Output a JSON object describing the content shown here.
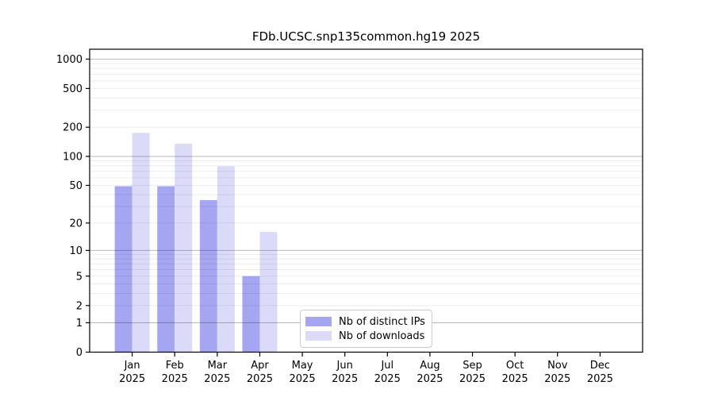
{
  "figure": {
    "title": "FDb.UCSC.snp135common.hg19 2025"
  },
  "chart_data": {
    "type": "bar",
    "title": "FDb.UCSC.snp135common.hg19 2025",
    "categories": [
      "Jan 2025",
      "Feb 2025",
      "Mar 2025",
      "Apr 2025",
      "May 2025",
      "Jun 2025",
      "Jul 2025",
      "Aug 2025",
      "Sep 2025",
      "Oct 2025",
      "Nov 2025",
      "Dec 2025"
    ],
    "series": [
      {
        "name": "Nb of distinct IPs",
        "color": "#a5a5f2",
        "values": [
          49,
          49,
          35,
          5,
          0,
          0,
          0,
          0,
          0,
          0,
          0,
          0
        ]
      },
      {
        "name": "Nb of downloads",
        "color": "#dbdbf9",
        "values": [
          175,
          135,
          79,
          16,
          0,
          0,
          0,
          0,
          0,
          0,
          0,
          0
        ]
      }
    ],
    "yscale": "log10(value+1)",
    "yticks": [
      0,
      1,
      2,
      5,
      10,
      20,
      50,
      100,
      200,
      500,
      1000
    ],
    "ylim": [
      0,
      1264
    ],
    "xlabel": "",
    "ylabel": "",
    "grid": "horizontal; faint minor lines at 2-9 per decade, darker lines at powers of 10",
    "legend_position": "lower center",
    "bar_layout": "paired side-by-side, no gap"
  },
  "colors": {
    "axis": "#000000",
    "grid_major": "#bababa",
    "grid_minor": "#ededed",
    "legend_border": "#cccccc"
  }
}
